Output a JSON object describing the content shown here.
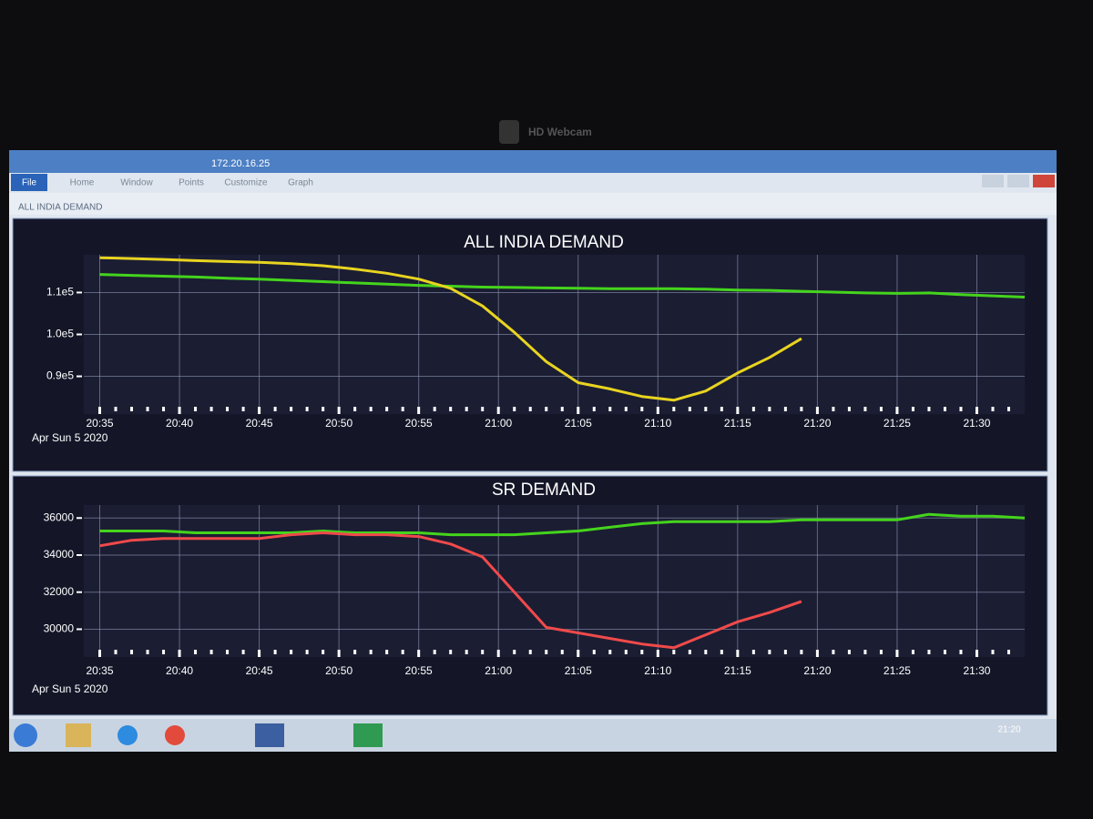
{
  "bezel": {
    "webcam": "HD Webcam"
  },
  "window": {
    "address": "172.20.16.25",
    "menu": [
      "File",
      "Home",
      "Window",
      "Points",
      "Customize",
      "Graph"
    ],
    "tab": "ALL INDIA DEMAND"
  },
  "taskbar": {
    "time": "21:20"
  },
  "chart_data": [
    {
      "type": "line",
      "title": "ALL INDIA DEMAND",
      "xlabel": "Apr Sun 5 2020",
      "x": [
        "20:35",
        "20:37",
        "20:39",
        "20:41",
        "20:43",
        "20:45",
        "20:47",
        "20:49",
        "20:51",
        "20:53",
        "20:55",
        "20:57",
        "20:59",
        "21:01",
        "21:03",
        "21:05",
        "21:07",
        "21:09",
        "21:11",
        "21:13",
        "21:15",
        "21:17",
        "21:19",
        "21:21",
        "21:23",
        "21:25",
        "21:27",
        "21:29",
        "21:31",
        "21:33"
      ],
      "series": [
        {
          "color": "#44d41c",
          "values": [
            114300,
            114100,
            113900,
            113700,
            113400,
            113200,
            112900,
            112600,
            112300,
            112000,
            111700,
            111500,
            111300,
            111200,
            111100,
            111000,
            110900,
            110900,
            110900,
            110800,
            110600,
            110500,
            110300,
            110100,
            109900,
            109800,
            109900,
            109500,
            109200,
            108900
          ]
        },
        {
          "color": "#e8d420",
          "values": [
            118300,
            118100,
            117900,
            117600,
            117400,
            117200,
            116900,
            116400,
            115600,
            114600,
            113200,
            111000,
            106800,
            100500,
            93500,
            88500,
            87000,
            85200,
            84300,
            86500,
            90800,
            94500,
            99000,
            null,
            null,
            null,
            null,
            null,
            null,
            null
          ]
        }
      ],
      "xlim": [
        "20:34",
        "21:33"
      ],
      "xticks": [
        "20:35",
        "20:40",
        "20:45",
        "20:50",
        "20:55",
        "21:00",
        "21:05",
        "21:10",
        "21:15",
        "21:20",
        "21:25",
        "21:30"
      ],
      "ylim": [
        81000,
        119000
      ],
      "yticks": [
        {
          "value": 90000,
          "label": "0.9e5"
        },
        {
          "value": 100000,
          "label": "1.0e5"
        },
        {
          "value": 110000,
          "label": "1.1e5"
        }
      ],
      "grid": true
    },
    {
      "type": "line",
      "title": "SR DEMAND",
      "xlabel": "Apr Sun 5 2020",
      "x": [
        "20:35",
        "20:37",
        "20:39",
        "20:41",
        "20:43",
        "20:45",
        "20:47",
        "20:49",
        "20:51",
        "20:53",
        "20:55",
        "20:57",
        "20:59",
        "21:01",
        "21:03",
        "21:05",
        "21:07",
        "21:09",
        "21:11",
        "21:13",
        "21:15",
        "21:17",
        "21:19",
        "21:21",
        "21:23",
        "21:25",
        "21:27",
        "21:29",
        "21:31",
        "21:33"
      ],
      "series": [
        {
          "color": "#44d41c",
          "values": [
            35300,
            35300,
            35300,
            35200,
            35200,
            35200,
            35200,
            35300,
            35200,
            35200,
            35200,
            35100,
            35100,
            35100,
            35200,
            35300,
            35500,
            35700,
            35800,
            35800,
            35800,
            35800,
            35900,
            35900,
            35900,
            35900,
            36200,
            36100,
            36100,
            36000
          ]
        },
        {
          "color": "#f04a4a",
          "values": [
            34500,
            34800,
            34900,
            34900,
            34900,
            34900,
            35100,
            35200,
            35100,
            35100,
            35000,
            34600,
            33900,
            32000,
            30100,
            29800,
            29500,
            29200,
            29000,
            29700,
            30400,
            30900,
            31500,
            null,
            null,
            null,
            null,
            null,
            null,
            null
          ]
        }
      ],
      "xlim": [
        "20:34",
        "21:33"
      ],
      "xticks": [
        "20:35",
        "20:40",
        "20:45",
        "20:50",
        "20:55",
        "21:00",
        "21:05",
        "21:10",
        "21:15",
        "21:20",
        "21:25",
        "21:30"
      ],
      "ylim": [
        28500,
        36700
      ],
      "yticks": [
        30000,
        32000,
        34000,
        36000
      ],
      "grid": true
    }
  ]
}
